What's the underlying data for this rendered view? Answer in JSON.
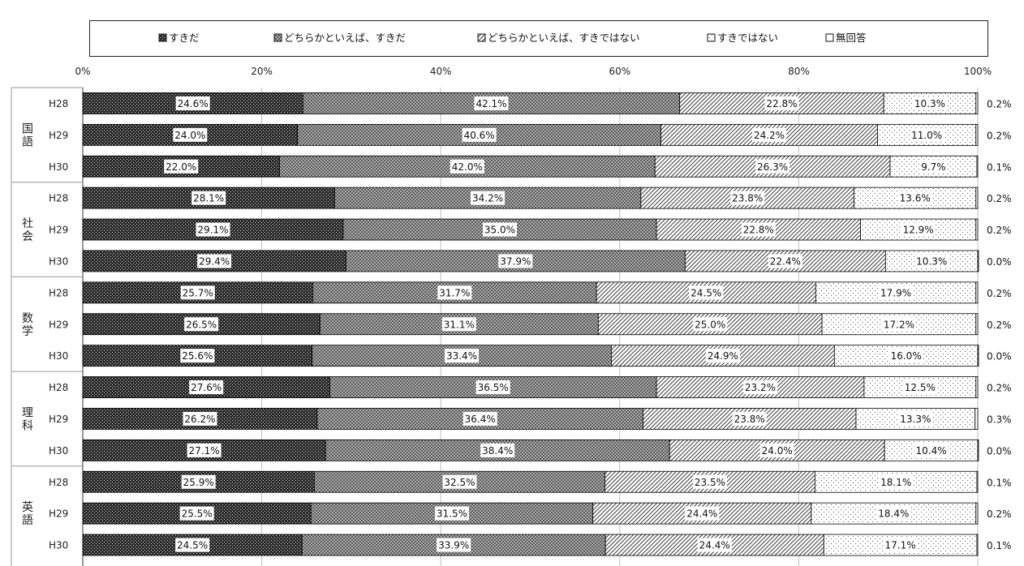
{
  "chart_data": {
    "type": "bar",
    "stacked": true,
    "orientation": "horizontal",
    "percent_scale": true,
    "x_tick_labels": [
      "0%",
      "20%",
      "40%",
      "60%",
      "80%",
      "100%"
    ],
    "xlim": [
      0,
      100
    ],
    "legend_position": "top",
    "legend": [
      {
        "label": "すきだ",
        "pattern": "dense-dots",
        "color": "#1a1a1a"
      },
      {
        "label": "どちらかといえば、すきだ",
        "pattern": "crosshatch",
        "color": "#6b6b6b"
      },
      {
        "label": "どちらかといえば、すきではない",
        "pattern": "diagonal",
        "color": "#555555"
      },
      {
        "label": "すきではない",
        "pattern": "sparse-dots",
        "color": "#9a9a9a"
      },
      {
        "label": "無回答",
        "pattern": "solid",
        "color": "#ffffff"
      }
    ],
    "groups": [
      {
        "subject": "国語",
        "rows": [
          {
            "year": "H28",
            "values": [
              24.6,
              42.1,
              22.8,
              10.3,
              0.2
            ],
            "labels": [
              "24.6%",
              "42.1%",
              "22.8%",
              "10.3%",
              "0.2%"
            ]
          },
          {
            "year": "H29",
            "values": [
              24.0,
              40.6,
              24.2,
              11.0,
              0.2
            ],
            "labels": [
              "24.0%",
              "40.6%",
              "24.2%",
              "11.0%",
              "0.2%"
            ]
          },
          {
            "year": "H30",
            "values": [
              22.0,
              42.0,
              26.3,
              9.7,
              0.1
            ],
            "labels": [
              "22.0%",
              "42.0%",
              "26.3%",
              "9.7%",
              "0.1%"
            ]
          }
        ]
      },
      {
        "subject": "社会",
        "rows": [
          {
            "year": "H28",
            "values": [
              28.1,
              34.2,
              23.8,
              13.6,
              0.2
            ],
            "labels": [
              "28.1%",
              "34.2%",
              "23.8%",
              "13.6%",
              "0.2%"
            ]
          },
          {
            "year": "H29",
            "values": [
              29.1,
              35.0,
              22.8,
              12.9,
              0.2
            ],
            "labels": [
              "29.1%",
              "35.0%",
              "22.8%",
              "12.9%",
              "0.2%"
            ]
          },
          {
            "year": "H30",
            "values": [
              29.4,
              37.9,
              22.4,
              10.3,
              0.0
            ],
            "labels": [
              "29.4%",
              "37.9%",
              "22.4%",
              "10.3%",
              "0.0%"
            ]
          }
        ]
      },
      {
        "subject": "数学",
        "rows": [
          {
            "year": "H28",
            "values": [
              25.7,
              31.7,
              24.5,
              17.9,
              0.2
            ],
            "labels": [
              "25.7%",
              "31.7%",
              "24.5%",
              "17.9%",
              "0.2%"
            ]
          },
          {
            "year": "H29",
            "values": [
              26.5,
              31.1,
              25.0,
              17.2,
              0.2
            ],
            "labels": [
              "26.5%",
              "31.1%",
              "25.0%",
              "17.2%",
              "0.2%"
            ]
          },
          {
            "year": "H30",
            "values": [
              25.6,
              33.4,
              24.9,
              16.0,
              0.0
            ],
            "labels": [
              "25.6%",
              "33.4%",
              "24.9%",
              "16.0%",
              "0.0%"
            ]
          }
        ]
      },
      {
        "subject": "理科",
        "rows": [
          {
            "year": "H28",
            "values": [
              27.6,
              36.5,
              23.2,
              12.5,
              0.2
            ],
            "labels": [
              "27.6%",
              "36.5%",
              "23.2%",
              "12.5%",
              "0.2%"
            ]
          },
          {
            "year": "H29",
            "values": [
              26.2,
              36.4,
              23.8,
              13.3,
              0.3
            ],
            "labels": [
              "26.2%",
              "36.4%",
              "23.8%",
              "13.3%",
              "0.3%"
            ]
          },
          {
            "year": "H30",
            "values": [
              27.1,
              38.4,
              24.0,
              10.4,
              0.0
            ],
            "labels": [
              "27.1%",
              "38.4%",
              "24.0%",
              "10.4%",
              "0.0%"
            ]
          }
        ]
      },
      {
        "subject": "英語",
        "rows": [
          {
            "year": "H28",
            "values": [
              25.9,
              32.5,
              23.5,
              18.1,
              0.1
            ],
            "labels": [
              "25.9%",
              "32.5%",
              "23.5%",
              "18.1%",
              "0.1%"
            ]
          },
          {
            "year": "H29",
            "values": [
              25.5,
              31.5,
              24.4,
              18.4,
              0.2
            ],
            "labels": [
              "25.5%",
              "31.5%",
              "24.4%",
              "18.4%",
              "0.2%"
            ]
          },
          {
            "year": "H30",
            "values": [
              24.5,
              33.9,
              24.4,
              17.1,
              0.1
            ],
            "labels": [
              "24.5%",
              "33.9%",
              "24.4%",
              "17.1%",
              "0.1%"
            ]
          }
        ]
      }
    ]
  }
}
